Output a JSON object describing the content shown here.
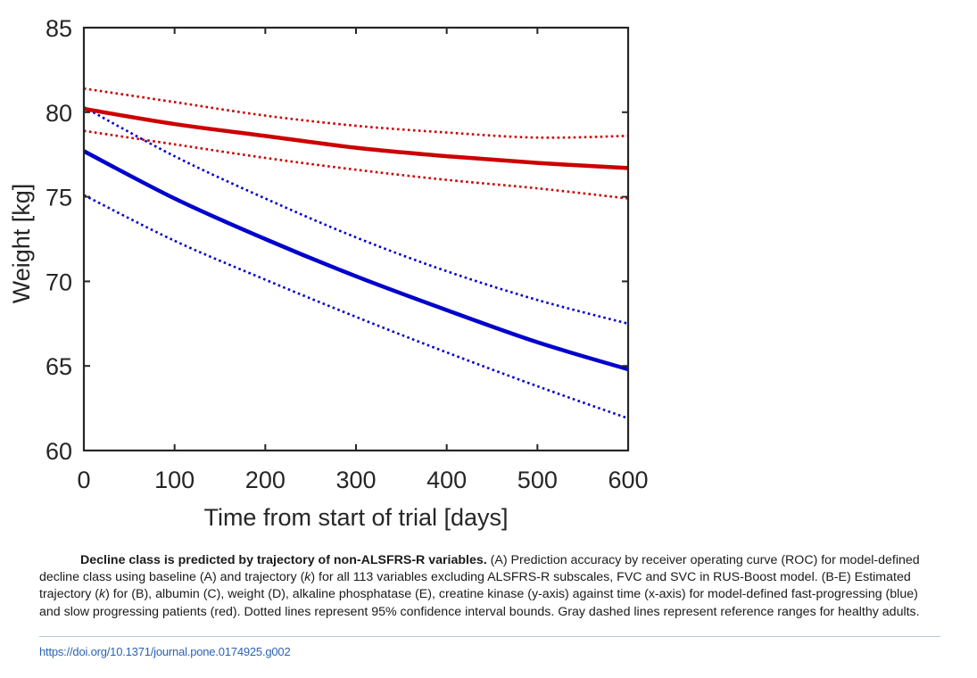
{
  "chart_data": {
    "type": "line",
    "xlabel": "Time from start of trial [days]",
    "ylabel": "Weight [kg]",
    "xlim": [
      0,
      600
    ],
    "ylim": [
      60,
      85
    ],
    "xticks": [
      0,
      100,
      200,
      300,
      400,
      500,
      600
    ],
    "yticks": [
      60,
      65,
      70,
      75,
      80,
      85
    ],
    "grid": false,
    "legend": "none",
    "x": [
      0,
      100,
      200,
      300,
      400,
      500,
      600
    ],
    "series": [
      {
        "role": "slow-progressing estimate",
        "color": "#cc0000",
        "style": "solid",
        "values": [
          80.2,
          79.3,
          78.6,
          77.9,
          77.4,
          77.0,
          76.7
        ]
      },
      {
        "role": "slow-progressing upper 95% CI",
        "color": "#cc0000",
        "style": "dotted",
        "values": [
          81.4,
          80.6,
          79.8,
          79.2,
          78.8,
          78.5,
          78.6
        ]
      },
      {
        "role": "slow-progressing lower 95% CI",
        "color": "#cc0000",
        "style": "dotted",
        "values": [
          78.9,
          78.1,
          77.3,
          76.6,
          76.0,
          75.5,
          74.9
        ]
      },
      {
        "role": "fast-progressing estimate",
        "color": "#0000cc",
        "style": "solid",
        "values": [
          77.7,
          74.9,
          72.5,
          70.3,
          68.3,
          66.4,
          64.8
        ]
      },
      {
        "role": "fast-progressing upper 95% CI",
        "color": "#0000cc",
        "style": "dotted",
        "values": [
          80.3,
          77.4,
          74.9,
          72.6,
          70.6,
          68.9,
          67.5
        ]
      },
      {
        "role": "fast-progressing lower 95% CI",
        "color": "#0000cc",
        "style": "dotted",
        "values": [
          75.1,
          72.4,
          70.1,
          67.9,
          65.8,
          63.8,
          61.9
        ]
      }
    ]
  },
  "caption": {
    "title": "Decline class is predicted by trajectory of non-ALSFRS-R variables.",
    "seg1": " (A) Prediction accuracy by receiver operating curve (ROC) for model-defined decline class using baseline (A) and trajectory (",
    "k1": "k",
    "seg2": ") for all 113 variables excluding ALSFRS-R subscales, FVC and SVC in RUS-Boost model. (B-E) Estimated trajectory (",
    "k2": "k",
    "seg3": ") for (B), albumin (C), weight (D), alkaline phosphatase (E), creatine kinase (y-axis) against time (x-axis) for model-defined fast-progressing (blue) and slow progressing patients (red). Dotted lines represent 95% confidence interval bounds. Gray dashed lines represent reference ranges for healthy adults."
  },
  "doi": "https://doi.org/10.1371/journal.pone.0174925.g002"
}
